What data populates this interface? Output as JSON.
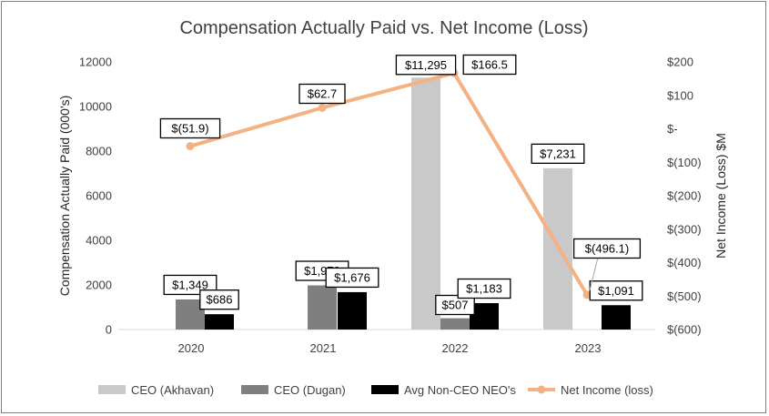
{
  "chart_data": {
    "type": "bar",
    "title": "Compensation Actually Paid vs. Net Income (Loss)",
    "categories": [
      "2020",
      "2021",
      "2022",
      "2023"
    ],
    "series": [
      {
        "name": "CEO (Akhavan)",
        "color": "#c9c9c9",
        "values": [
          null,
          null,
          11295,
          7231
        ],
        "labels": [
          null,
          null,
          "$11,295",
          "$7,231"
        ]
      },
      {
        "name": "CEO (Dugan)",
        "color": "#7f7f7f",
        "values": [
          1349,
          1979,
          507,
          null
        ],
        "labels": [
          "$1,349",
          "$1,979",
          "$507",
          null
        ]
      },
      {
        "name": "Avg Non-CEO NEO's",
        "color": "#000000",
        "values": [
          686,
          1676,
          1183,
          1091
        ],
        "labels": [
          "$686",
          "$1,676",
          "$1,183",
          "$1,091"
        ]
      }
    ],
    "line_series": {
      "name": "Net Income (loss)",
      "color": "#f4b183",
      "axis": "right",
      "values": [
        -51.9,
        62.7,
        166.5,
        -496.1
      ],
      "labels": [
        "$(51.9)",
        "$62.7",
        "$166.5",
        "$(496.1)"
      ]
    },
    "ylabel": "Compensation Actually Paid (000's)",
    "ylim": [
      0,
      12000
    ],
    "yticks": [
      "0",
      "2000",
      "4000",
      "6000",
      "8000",
      "10000",
      "12000"
    ],
    "y2label": "Net Income (Loss) $M",
    "y2lim": [
      -600,
      200
    ],
    "y2ticks": [
      "$(600)",
      "$(500)",
      "$(400)",
      "$(300)",
      "$(200)",
      "$(100)",
      "$-",
      "$100",
      "$200"
    ],
    "grid": false,
    "legend": "bottom"
  }
}
